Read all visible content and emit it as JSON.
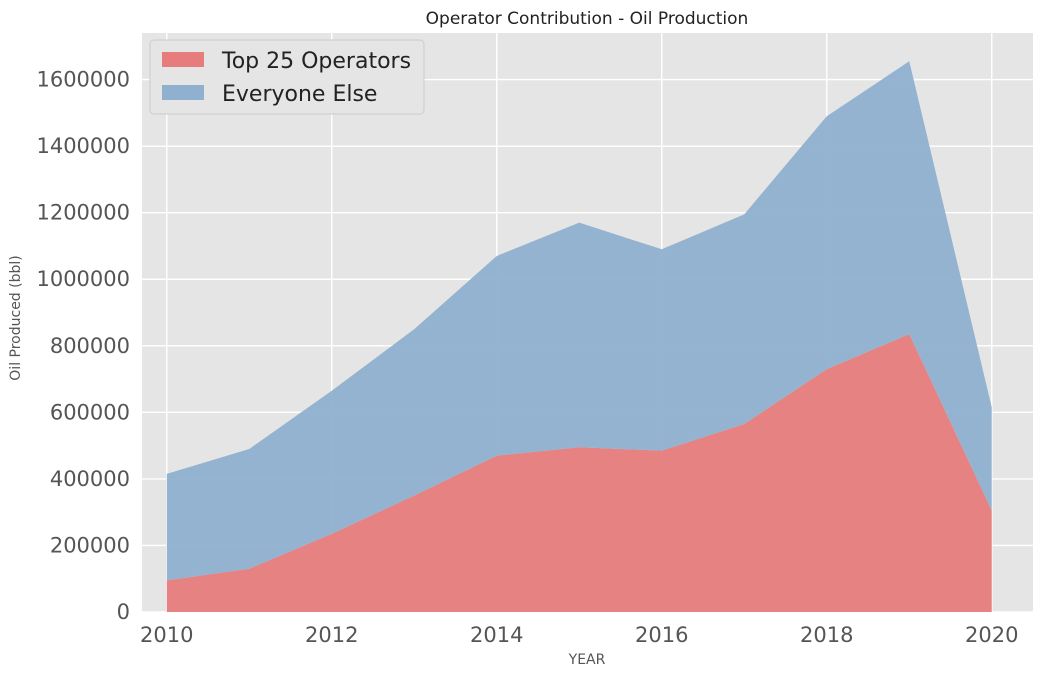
{
  "chart_data": {
    "type": "area",
    "stacked": true,
    "title": "Operator Contribution - Oil Production",
    "xlabel": "YEAR",
    "ylabel": "Oil Produced (bbl)",
    "x": [
      2010,
      2011,
      2012,
      2013,
      2014,
      2015,
      2016,
      2017,
      2018,
      2019,
      2020
    ],
    "xticks": [
      "2010",
      "2012",
      "2014",
      "2016",
      "2018",
      "2020"
    ],
    "yticks": [
      "0",
      "200000",
      "400000",
      "600000",
      "800000",
      "1000000",
      "1200000",
      "1400000",
      "1600000"
    ],
    "xlim": [
      2009.7,
      2020.5
    ],
    "ylim": [
      0,
      1740000
    ],
    "grid": true,
    "legend_position": "top-left",
    "series": [
      {
        "name": "Top 25 Operators",
        "color": "#e77c7c",
        "values": [
          95000,
          130000,
          235000,
          350000,
          470000,
          495000,
          485000,
          565000,
          730000,
          835000,
          305000
        ]
      },
      {
        "name": "Everyone Else",
        "color": "#8fb0cf",
        "values": [
          320000,
          360000,
          430000,
          500000,
          600000,
          675000,
          605000,
          630000,
          760000,
          820000,
          310000
        ]
      }
    ]
  }
}
